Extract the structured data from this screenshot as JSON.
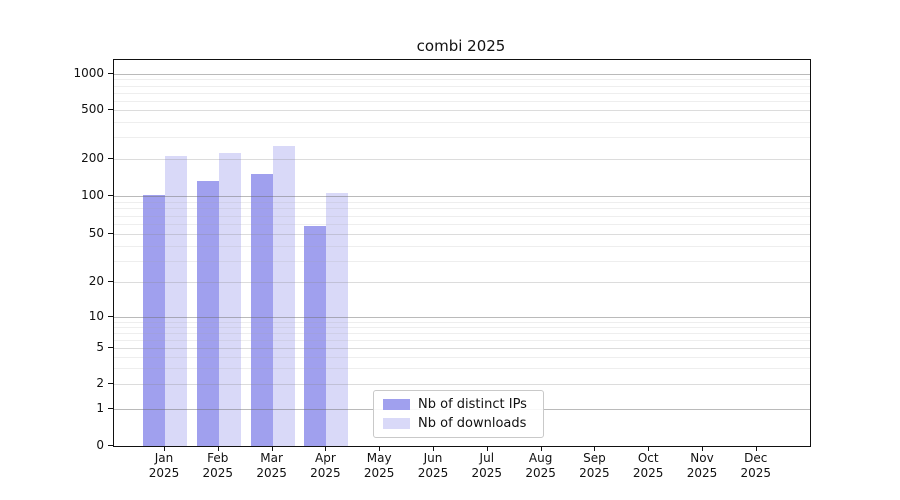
{
  "chart_data": {
    "type": "bar",
    "title": "combi 2025",
    "year_label": "2025",
    "categories": [
      "Jan",
      "Feb",
      "Mar",
      "Apr",
      "May",
      "Jun",
      "Jul",
      "Aug",
      "Sep",
      "Oct",
      "Nov",
      "Dec"
    ],
    "series": [
      {
        "name": "Nb of distinct IPs",
        "color": "#a0a0ee",
        "values": [
          102,
          133,
          150,
          58,
          0,
          0,
          0,
          0,
          0,
          0,
          0,
          0
        ]
      },
      {
        "name": "Nb of downloads",
        "color": "#d9d9f8",
        "values": [
          210,
          222,
          255,
          106,
          0,
          0,
          0,
          0,
          0,
          0,
          0,
          0
        ]
      }
    ],
    "y_axis": {
      "scale": "symlog",
      "ticks": [
        0,
        1,
        2,
        5,
        10,
        20,
        50,
        100,
        200,
        500,
        1000
      ],
      "major_grid_values": [
        1,
        10,
        100,
        1000
      ],
      "mid_grid_values": [
        2,
        5,
        20,
        50,
        200,
        500
      ],
      "minor_grid_values": [
        3,
        4,
        6,
        7,
        8,
        9,
        30,
        40,
        60,
        70,
        80,
        90,
        300,
        400,
        600,
        700,
        800,
        900
      ]
    },
    "legend_position": "lower-center-inside",
    "grid": "on"
  }
}
